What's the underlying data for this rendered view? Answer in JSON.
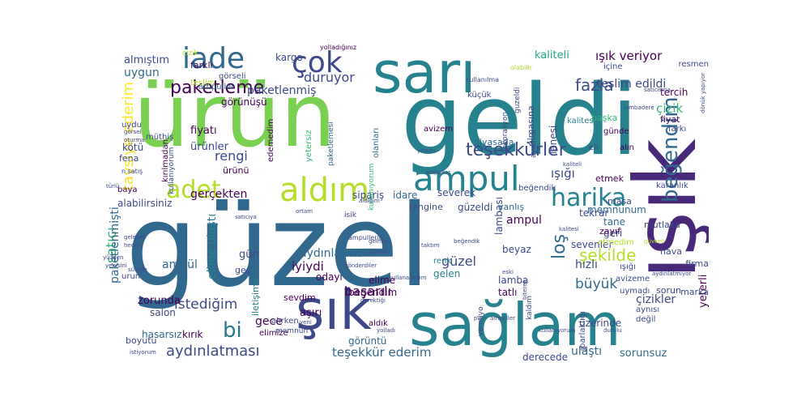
{
  "word_cloud": {
    "colors": {
      "c1": "#31688e",
      "c2": "#26828e",
      "c3": "#440154",
      "c4": "#3e4989",
      "c5": "#1f9e89",
      "c6": "#35b779",
      "c7": "#6ece58",
      "c8": "#b5de2b",
      "c9": "#fde725",
      "c10": "#482878"
    },
    "words": [
      {
        "text": "güzel",
        "color": "#31688e"
      },
      {
        "text": "geldi",
        "color": "#26828e"
      },
      {
        "text": "ürün",
        "color": "#7ad151"
      },
      {
        "text": "ışık",
        "color": "#482878"
      },
      {
        "text": "sağlam",
        "color": "#26828e"
      },
      {
        "text": "sarı",
        "color": "#26828e"
      },
      {
        "text": "şık",
        "color": "#3e4989"
      },
      {
        "text": "ampul",
        "color": "#26828e"
      },
      {
        "text": "aldım",
        "color": "#b5de2b"
      },
      {
        "text": "iade",
        "color": "#31688e"
      },
      {
        "text": "çok",
        "color": "#3e4989"
      },
      {
        "text": "adet",
        "color": "#b5de2b"
      },
      {
        "text": "harika",
        "color": "#26828e"
      },
      {
        "text": "beğendim",
        "color": "#31688e"
      },
      {
        "text": "teşekkürler",
        "color": "#3e4989"
      },
      {
        "text": "paketleme",
        "color": "#440154"
      },
      {
        "text": "loş",
        "color": "#31688e"
      },
      {
        "text": "bi",
        "color": "#2a788e"
      },
      {
        "text": "fazla",
        "color": "#3e4989"
      },
      {
        "text": "şekilde",
        "color": "#b5de2b"
      },
      {
        "text": "büyük",
        "color": "#31688e"
      },
      {
        "text": "ışık veriyor",
        "color": "#440154"
      },
      {
        "text": "kaliteli",
        "color": "#22a884"
      },
      {
        "text": "aydınlatması",
        "color": "#3e4989"
      },
      {
        "text": "teşekkür ederim",
        "color": "#31688e"
      },
      {
        "text": "tavsiye ederim",
        "color": "#fde725"
      },
      {
        "text": "satıcı",
        "color": "#35b779"
      },
      {
        "text": "istediğim",
        "color": "#3e4989"
      },
      {
        "text": "gerçekten",
        "color": "#440154"
      },
      {
        "text": "güzel",
        "color": "#3e4989"
      },
      {
        "text": "iyiydi",
        "color": "#440154"
      },
      {
        "text": "hızlı",
        "color": "#3e4989"
      },
      {
        "text": "rengi",
        "color": "#3e4989"
      },
      {
        "text": "duruyor",
        "color": "#3e4989"
      },
      {
        "text": "ışığı",
        "color": "#3e4989"
      },
      {
        "text": "çizik",
        "color": "#35b779"
      },
      {
        "text": "teslim edildi",
        "color": "#3e4989"
      },
      {
        "text": "paketlenmiş",
        "color": "#3e4989"
      },
      {
        "text": "almıştım",
        "color": "#3e4989"
      },
      {
        "text": "uygun",
        "color": "#31688e"
      },
      {
        "text": "başarılı",
        "color": "#440154"
      },
      {
        "text": "aşırı",
        "color": "#440154"
      },
      {
        "text": "gece",
        "color": "#440154"
      },
      {
        "text": "kırık",
        "color": "#440154"
      },
      {
        "text": "hasarsız",
        "color": "#31688e"
      },
      {
        "text": "zorunda",
        "color": "#440154"
      },
      {
        "text": "salon",
        "color": "#3e4989"
      },
      {
        "text": "paketlenmişti",
        "color": "#31688e"
      },
      {
        "text": "ulaştı",
        "color": "#31688e"
      },
      {
        "text": "sorunsuz",
        "color": "#31688e"
      },
      {
        "text": "yeterli",
        "color": "#440154"
      },
      {
        "text": "çizikler",
        "color": "#3e4989"
      },
      {
        "text": "firma",
        "color": "#3e4989"
      },
      {
        "text": "marka",
        "color": "#3e4989"
      },
      {
        "text": "derecede",
        "color": "#3e4989"
      },
      {
        "text": "üzerinde",
        "color": "#3e4989"
      },
      {
        "text": "aydınlatma",
        "color": "#31688e"
      },
      {
        "text": "odayı",
        "color": "#440154"
      },
      {
        "text": "lamba",
        "color": "#3e4989"
      },
      {
        "text": "lambası",
        "color": "#3e4989"
      },
      {
        "text": "beyaz",
        "color": "#3e4989"
      },
      {
        "text": "ampül",
        "color": "#31688e"
      },
      {
        "text": "ampul",
        "color": "#440154"
      },
      {
        "text": "gün",
        "color": "#3e4989"
      },
      {
        "text": "begendim",
        "color": "#440154"
      },
      {
        "text": "elime",
        "color": "#440154"
      },
      {
        "text": "tatlı",
        "color": "#440154"
      },
      {
        "text": "gelen",
        "color": "#26828e"
      },
      {
        "text": "memnunum",
        "color": "#31688e"
      },
      {
        "text": "tane",
        "color": "#31688e"
      },
      {
        "text": "geri",
        "color": "#3e4989"
      },
      {
        "text": "sevenler",
        "color": "#3e4989"
      },
      {
        "text": "tekrar",
        "color": "#3e4989"
      },
      {
        "text": "mutlaka",
        "color": "#3e4989"
      },
      {
        "text": "hava",
        "color": "#3e4989"
      },
      {
        "text": "sorun",
        "color": "#3e4989"
      },
      {
        "text": "etmek",
        "color": "#440154"
      },
      {
        "text": "masa",
        "color": "#3e4989"
      },
      {
        "text": "sipariş",
        "color": "#3e4989"
      },
      {
        "text": "severek",
        "color": "#3e4989"
      },
      {
        "text": "idare",
        "color": "#31688e"
      },
      {
        "text": "güzeldi",
        "color": "#3e4989"
      },
      {
        "text": "yanlış",
        "color": "#31688e"
      },
      {
        "text": "rengine",
        "color": "#3e4989"
      },
      {
        "text": "kargo",
        "color": "#3e4989"
      },
      {
        "text": "farklı",
        "color": "#440154"
      },
      {
        "text": "görseli",
        "color": "#3e4989"
      },
      {
        "text": "ampuller",
        "color": "#31688e"
      },
      {
        "text": "görünüşü",
        "color": "#440154"
      },
      {
        "text": "fiyatı",
        "color": "#440154"
      },
      {
        "text": "ürünler",
        "color": "#3e4989"
      },
      {
        "text": "ürünü",
        "color": "#440154"
      },
      {
        "text": "müthiş",
        "color": "#3e4989"
      },
      {
        "text": "kötü",
        "color": "#3e4989"
      },
      {
        "text": "fena",
        "color": "#3e4989"
      },
      {
        "text": "uydu",
        "color": "#3e4989"
      },
      {
        "text": "alabilirsiniz",
        "color": "#3e4989"
      },
      {
        "text": "baya",
        "color": "#440154"
      },
      {
        "text": "olanları",
        "color": "#31688e"
      },
      {
        "text": "edemedim",
        "color": "#440154"
      },
      {
        "text": "kalitesi",
        "color": "#26828e"
      },
      {
        "text": "içine",
        "color": "#3e4989"
      },
      {
        "text": "tercih",
        "color": "#440154"
      },
      {
        "text": "karanlık",
        "color": "#3e4989"
      },
      {
        "text": "başka",
        "color": "#35b779"
      },
      {
        "text": "günde",
        "color": "#440154"
      },
      {
        "text": "fiyat",
        "color": "#440154"
      },
      {
        "text": "farkı",
        "color": "#3e4989"
      },
      {
        "text": "alın",
        "color": "#440154"
      },
      {
        "text": "eli",
        "color": "#3e4989"
      },
      {
        "text": "olmasına",
        "color": "#3e4989"
      },
      {
        "text": "piyasada",
        "color": "#31688e"
      },
      {
        "text": "avizem",
        "color": "#440154"
      },
      {
        "text": "zayıf",
        "color": "#440154"
      },
      {
        "text": "etmedim",
        "color": "#b5de2b"
      },
      {
        "text": "ışığı",
        "color": "#3e4989"
      },
      {
        "text": "avizeme",
        "color": "#3e4989"
      },
      {
        "text": "uymadı",
        "color": "#3e4989"
      },
      {
        "text": "aynısı",
        "color": "#3e4989"
      },
      {
        "text": "değil",
        "color": "#3e4989"
      },
      {
        "text": "vermiyo",
        "color": "#3e4989"
      },
      {
        "text": "kaldım",
        "color": "#3e4989"
      },
      {
        "text": "parlaklığı",
        "color": "#3e4989"
      },
      {
        "text": "aldık",
        "color": "#440154"
      },
      {
        "text": "görüntü",
        "color": "#31688e"
      },
      {
        "text": "sevdim",
        "color": "#440154"
      },
      {
        "text": "elime ulaştı",
        "color": "#26828e"
      },
      {
        "text": "iletişime",
        "color": "#26828e"
      },
      {
        "text": "elimize",
        "color": "#440154"
      },
      {
        "text": "alırken",
        "color": "#3e4989"
      },
      {
        "text": "memnun",
        "color": "#3e4989"
      },
      {
        "text": "boyutu",
        "color": "#3e4989"
      },
      {
        "text": "urun",
        "color": "#3e4989"
      },
      {
        "text": "geç",
        "color": "#3e4989"
      },
      {
        "text": "kırılmadan",
        "color": "#440154"
      },
      {
        "text": "kullanıyorum",
        "color": "#3e4989"
      },
      {
        "text": "teslim",
        "color": "#b5de2b"
      },
      {
        "text": "kullanıyorum",
        "color": "#35b779"
      },
      {
        "text": "dekorasyon",
        "color": "#3e4989"
      },
      {
        "text": "aydınlık",
        "color": "#3e4989"
      },
      {
        "text": "guzeldi",
        "color": "#3e4989"
      },
      {
        "text": "lanesi",
        "color": "#3e4989"
      },
      {
        "text": "küçük",
        "color": "#3e4989"
      },
      {
        "text": "renk",
        "color": "#26828e"
      },
      {
        "text": "ampullerin",
        "color": "#3e4989"
      },
      {
        "text": "isik",
        "color": "#3e4989"
      },
      {
        "text": "resmen",
        "color": "#3e4989"
      },
      {
        "text": "yetersiz",
        "color": "#35b779"
      },
      {
        "text": "beğendik",
        "color": "#3e4989"
      },
      {
        "text": "paketlemesi",
        "color": "#31688e"
      },
      {
        "text": "n satış",
        "color": "#3e4989"
      },
      {
        "text": "yolladığınız",
        "color": "#440154"
      },
      {
        "text": "kullanılma",
        "color": "#3e4989"
      },
      {
        "text": "olabilir",
        "color": "#b5de2b"
      },
      {
        "text": "türlü",
        "color": "#3e4989"
      },
      {
        "text": "gönderdiler",
        "color": "#3e4989"
      },
      {
        "text": "kullanacağım",
        "color": "#3e4989"
      },
      {
        "text": "yenisini",
        "color": "#3e4989"
      },
      {
        "text": "yüzden",
        "color": "#3e4989"
      },
      {
        "text": "gerektiği",
        "color": "#3e4989"
      },
      {
        "text": "istiyorum",
        "color": "#3e4989"
      },
      {
        "text": "satıcıya",
        "color": "#3e4989"
      },
      {
        "text": "biterek",
        "color": "#3e4989"
      },
      {
        "text": "durulu",
        "color": "#3e4989"
      },
      {
        "text": "dönük yapıyor",
        "color": "#3e4989"
      },
      {
        "text": "güvenli",
        "color": "#b5de2b"
      },
      {
        "text": "aydınlatmıyor",
        "color": "#3e4989"
      },
      {
        "text": "yorum",
        "color": "#3e4989"
      },
      {
        "text": "taktım",
        "color": "#3e4989"
      },
      {
        "text": "eski",
        "color": "#3e4989"
      },
      {
        "text": "yeni",
        "color": "#3e4989"
      },
      {
        "text": "led",
        "color": "#3e4989"
      },
      {
        "text": "pis",
        "color": "#3e4989"
      },
      {
        "text": "çizik",
        "color": "#b5de2b"
      },
      {
        "text": "ortam",
        "color": "#3e4989"
      },
      {
        "text": "gelmiş",
        "color": "#3e4989"
      },
      {
        "text": "sürede",
        "color": "#3e4989"
      },
      {
        "text": "görsel",
        "color": "#3e4989"
      },
      {
        "text": "oturma",
        "color": "#3e4989"
      },
      {
        "text": "gelecek",
        "color": "#3e4989"
      },
      {
        "text": "hediye",
        "color": "#3e4989"
      },
      {
        "text": "ampuller",
        "color": "#3e4989"
      },
      {
        "text": "ampuller",
        "color": "#3e4989"
      },
      {
        "text": "kaliteli",
        "color": "#3e4989"
      },
      {
        "text": "aldığım",
        "color": "#3e4989"
      },
      {
        "text": "beğendik",
        "color": "#3e4989"
      },
      {
        "text": "günlük",
        "color": "#3e4989"
      },
      {
        "text": "lambadere",
        "color": "#3e4989"
      },
      {
        "text": "satıcısına",
        "color": "#3e4989"
      },
      {
        "text": "yolladı",
        "color": "#3e4989"
      },
      {
        "text": "kullanıyorum",
        "color": "#3e4989"
      },
      {
        "text": "kalitesi",
        "color": "#3e4989"
      }
    ]
  }
}
